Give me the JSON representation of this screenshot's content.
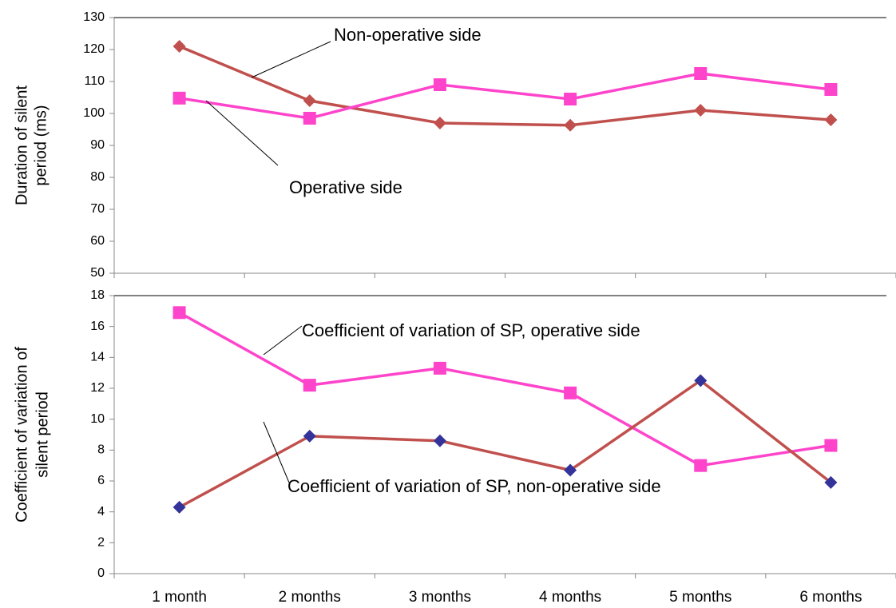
{
  "chart_data": [
    {
      "type": "line",
      "ylabel": [
        "Duration of silent",
        "period (ms)"
      ],
      "categories": [
        null,
        null,
        null,
        null,
        null,
        null
      ],
      "series": [
        {
          "name": "Non-operative side",
          "color": "#c0504d",
          "marker": "diamond",
          "marker_color": "#c0504d",
          "values": [
            121,
            104,
            97,
            96.3,
            101,
            98
          ]
        },
        {
          "name": "Operative side",
          "color": "#ff44cc",
          "marker": "square",
          "marker_color": "#ff44cc",
          "values": [
            104.8,
            98.5,
            109,
            104.5,
            112.5,
            107.5
          ]
        }
      ],
      "ylim": [
        50,
        130
      ],
      "yticks": [
        50,
        60,
        70,
        80,
        90,
        100,
        110,
        120,
        130
      ],
      "grid": false
    },
    {
      "type": "line",
      "ylabel": [
        "Coefficient of variation of",
        "silent period"
      ],
      "categories": [
        "1 month",
        "2 months",
        "3 months",
        "4 months",
        "5 months",
        "6 months"
      ],
      "series": [
        {
          "name": "Coefficient of variation of SP, operative side",
          "color": "#ff44cc",
          "marker": "square",
          "marker_color": "#ff44cc",
          "values": [
            16.9,
            12.2,
            13.3,
            11.7,
            7.0,
            8.3
          ]
        },
        {
          "name": "Coefficient of variation of SP, non-operative side",
          "color": "#c0504d",
          "marker": "diamond",
          "marker_color": "#333399",
          "values": [
            4.3,
            8.9,
            8.6,
            6.7,
            12.5,
            5.9
          ]
        }
      ],
      "ylim": [
        0,
        18
      ],
      "yticks": [
        0,
        2,
        4,
        6,
        8,
        10,
        12,
        14,
        16,
        18
      ],
      "grid": false
    }
  ]
}
